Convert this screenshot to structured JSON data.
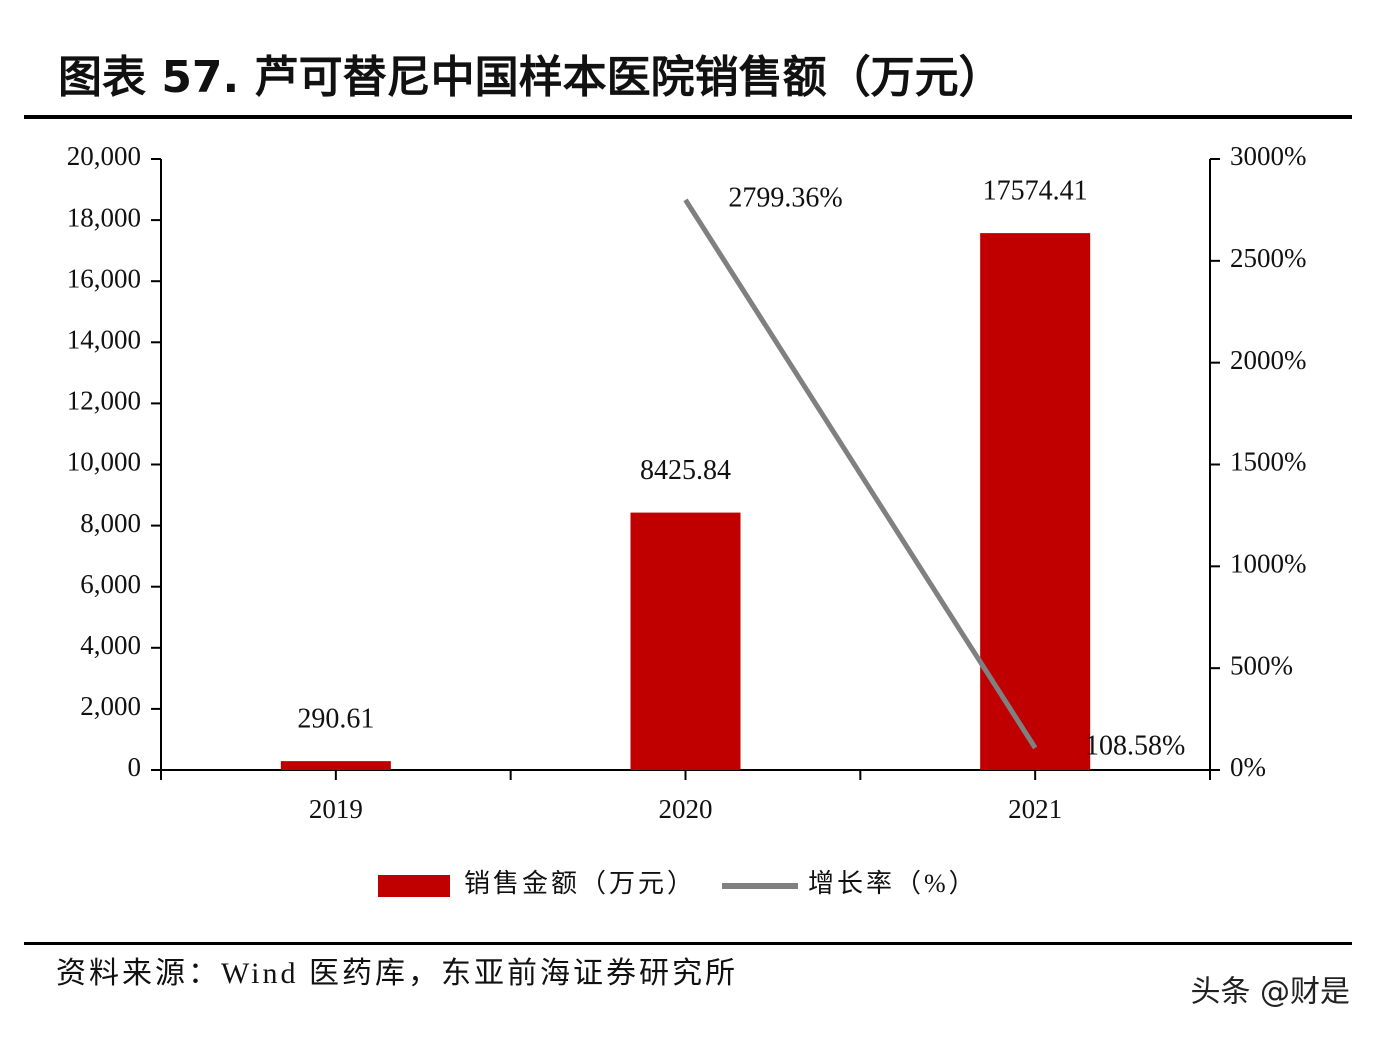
{
  "chart_data": {
    "type": "bar-line",
    "title": "图表 57. 芦可替尼中国样本医院销售额（万元）",
    "source": "资料来源：Wind 医药库，东亚前海证券研究所",
    "watermark": "头条 @财是",
    "categories": [
      "2019",
      "2020",
      "2021"
    ],
    "series": [
      {
        "name": "销售金额（万元）",
        "type": "bar",
        "color": "#c00000",
        "values": [
          290.61,
          8425.84,
          17574.41
        ]
      },
      {
        "name": "增长率（%）",
        "type": "line",
        "axis": "y2",
        "color": "#808080",
        "values": [
          null,
          2799.36,
          108.58
        ],
        "value_labels": [
          null,
          "2799.36%",
          "108.58%"
        ]
      }
    ],
    "ylim": [
      0,
      20000
    ],
    "yticks": [
      0,
      {
        "value": 2000,
        "label": "2,000"
      },
      {
        "value": 4000,
        "label": "4,000"
      },
      {
        "value": 6000,
        "label": "6,000"
      },
      {
        "value": 8000,
        "label": "8,000"
      },
      {
        "value": 10000,
        "label": "10,000"
      },
      {
        "value": 12000,
        "label": "12,000"
      },
      {
        "value": 14000,
        "label": "14,000"
      },
      {
        "value": 16000,
        "label": "16,000"
      },
      {
        "value": 18000,
        "label": "18,000"
      },
      {
        "value": 20000,
        "label": "20,000"
      }
    ],
    "y2lim": [
      0,
      3000
    ],
    "y2ticks": [
      {
        "value": 0,
        "label": "0%"
      },
      {
        "value": 500,
        "label": "500%"
      },
      {
        "value": 1000,
        "label": "1000%"
      },
      {
        "value": 1500,
        "label": "1500%"
      },
      {
        "value": 2000,
        "label": "2000%"
      },
      {
        "value": 2500,
        "label": "2500%"
      },
      {
        "value": 3000,
        "label": "3000%"
      }
    ],
    "legend": "bottom"
  }
}
